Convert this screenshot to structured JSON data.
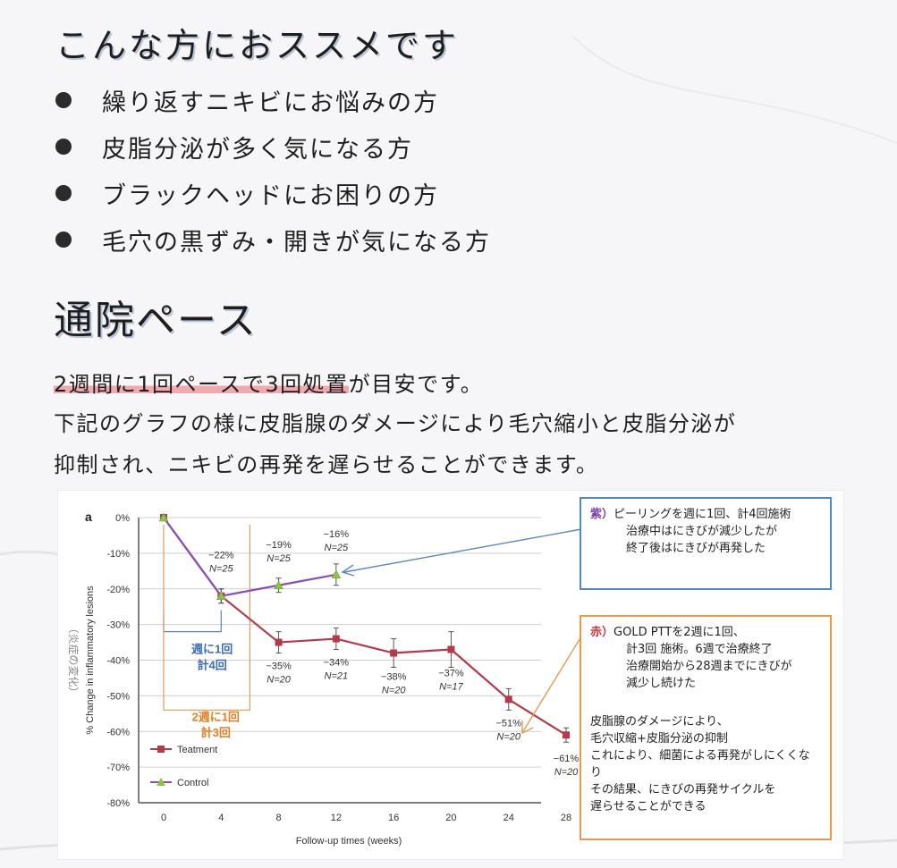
{
  "heading_recommend": "こんな方におススメです",
  "recommend_items": [
    "繰り返すニキビにお悩みの方",
    "皮脂分泌が多く気になる方",
    "ブラックヘッドにお困りの方",
    "毛穴の黒ずみ・開きが気になる方"
  ],
  "heading_pace": "通院ペース",
  "pace_highlight": "2週間に1回ペースで3回処置",
  "pace_rest": "が目安です。",
  "pace_line2": "下記のグラフの様に皮脂腺のダメージにより毛穴縮小と皮脂分泌が",
  "pace_line3": "抑制され、ニキビの再発を遅らせることができます。",
  "chart_data": {
    "type": "line",
    "panel_label": "a",
    "xlabel": "Follow-up times (weeks)",
    "ylabel": "% Change in inflammatory lesions",
    "ylabel_ja": "（炎症の変化）",
    "x": [
      0,
      4,
      8,
      12,
      16,
      20,
      24,
      28
    ],
    "xlim": [
      0,
      28
    ],
    "ylim": [
      -80,
      0
    ],
    "y_ticks": [
      0,
      -10,
      -20,
      -30,
      -40,
      -50,
      -60,
      -70,
      -80
    ],
    "grid": true,
    "legend_position": "bottom-left",
    "series": [
      {
        "name": "Teatment",
        "color": "#b23a4b",
        "x": [
          0,
          4,
          8,
          12,
          16,
          20,
          24,
          28
        ],
        "y": [
          0,
          -22,
          -35,
          -34,
          -38,
          -37,
          -51,
          -61
        ],
        "err": [
          0,
          2,
          3,
          3,
          4,
          5,
          3,
          2
        ],
        "labels": [
          {
            "x": 8,
            "pct": "−35%",
            "n": "N=20"
          },
          {
            "x": 12,
            "pct": "−34%",
            "n": "N=21"
          },
          {
            "x": 16,
            "pct": "−38%",
            "n": "N=20"
          },
          {
            "x": 20,
            "pct": "−37%",
            "n": "N=17"
          },
          {
            "x": 24,
            "pct": "−51%",
            "n": "N=20"
          },
          {
            "x": 28,
            "pct": "−61%",
            "n": "N=20"
          }
        ]
      },
      {
        "name": "Control",
        "color": "#8b4fb2",
        "x": [
          0,
          4,
          8,
          12
        ],
        "y": [
          0,
          -22,
          -19,
          -16
        ],
        "err": [
          0,
          2,
          2,
          3
        ],
        "labels": [
          {
            "x": 4,
            "pct": "−22%",
            "n": "N=25"
          },
          {
            "x": 8,
            "pct": "−19%",
            "n": "N=25"
          },
          {
            "x": 12,
            "pct": "−16%",
            "n": "N=25"
          }
        ]
      }
    ],
    "annotations": {
      "blue_line1": "週に1回",
      "blue_line2": "計4回",
      "orange_line1": "2週に1回",
      "orange_line2": "計3回"
    }
  },
  "note_purple": {
    "tag": "紫）",
    "line1": "ピーリングを週に1回、計4回施術",
    "line2": "治療中はにきびが減少したが",
    "line3": "終了後はにきびが再発した"
  },
  "note_red": {
    "tag": "赤）",
    "line1": "GOLD PTTを2週に1回、",
    "line2": "計3回 施術。6週で治療終了",
    "line3": "治療開始から28週までにきびが",
    "line4": "減少し続けた",
    "line5": "皮脂腺のダメージにより、",
    "line6": "毛穴収縮+皮脂分泌の抑制",
    "line7": "これにより、細菌による再発がしにくくなり",
    "line8": "その結果、にきびの再発サイクルを",
    "line9": "遅らせることができる"
  }
}
